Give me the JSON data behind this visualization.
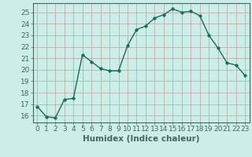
{
  "x": [
    0,
    1,
    2,
    3,
    4,
    5,
    6,
    7,
    8,
    9,
    10,
    11,
    12,
    13,
    14,
    15,
    16,
    17,
    18,
    19,
    20,
    21,
    22,
    23
  ],
  "y": [
    16.8,
    15.9,
    15.8,
    17.4,
    17.5,
    21.3,
    20.7,
    20.1,
    19.9,
    19.9,
    22.1,
    23.5,
    23.8,
    24.5,
    24.8,
    25.3,
    25.0,
    25.1,
    24.7,
    23.0,
    21.9,
    20.6,
    20.4,
    19.5
  ],
  "line_color": "#1a6b5a",
  "marker": "o",
  "markersize": 2.5,
  "linewidth": 1.0,
  "bg_color": "#cceee8",
  "grid_color": "#c0a0a0",
  "xlabel": "Humidex (Indice chaleur)",
  "ylim": [
    15.4,
    25.8
  ],
  "xlim": [
    -0.5,
    23.5
  ],
  "yticks": [
    16,
    17,
    18,
    19,
    20,
    21,
    22,
    23,
    24,
    25
  ],
  "xticks": [
    0,
    1,
    2,
    3,
    4,
    5,
    6,
    7,
    8,
    9,
    10,
    11,
    12,
    13,
    14,
    15,
    16,
    17,
    18,
    19,
    20,
    21,
    22,
    23
  ],
  "xlabel_fontsize": 7.5,
  "tick_fontsize": 6.5
}
